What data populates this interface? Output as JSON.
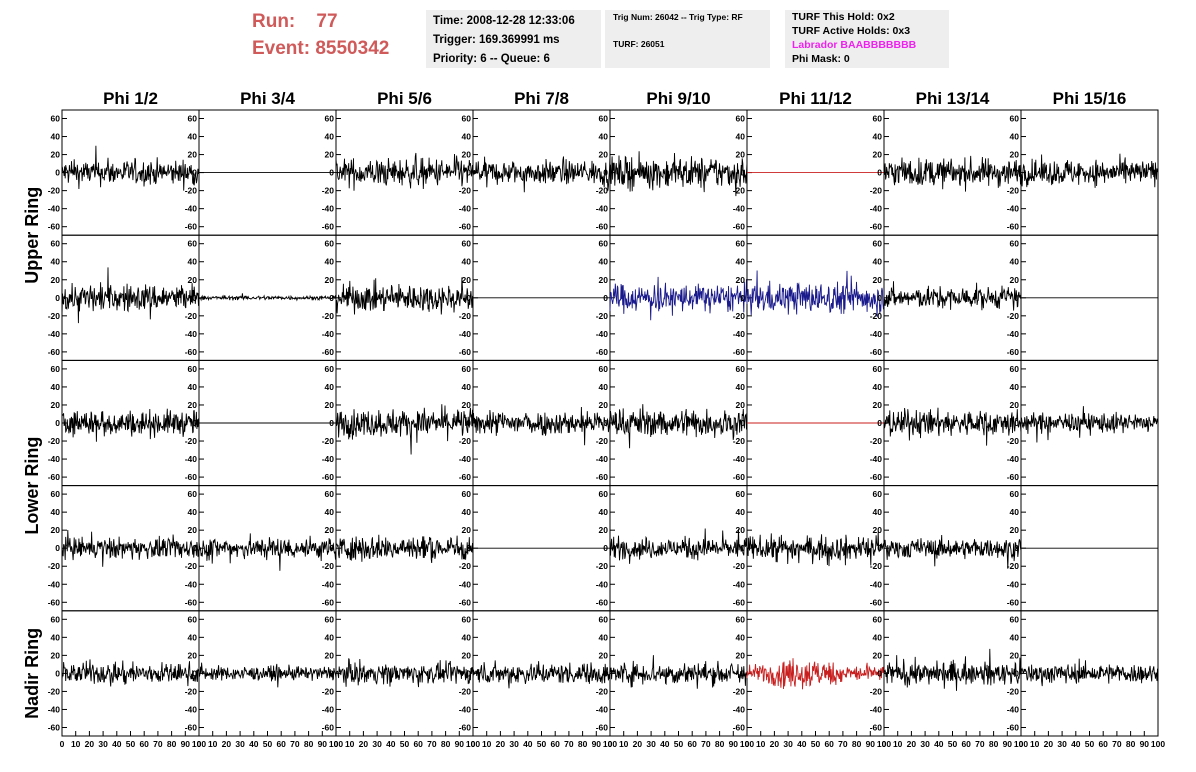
{
  "header": {
    "run_label": "Run:",
    "run_value": "77",
    "event_label": "Event:",
    "event_value": "8550342",
    "time": "Time: 2008-12-28 12:33:06",
    "trigger": "Trigger: 169.369991 ms",
    "priority": "Priority: 6 -- Queue: 6",
    "trig_num": "Trig Num: 26042 -- Trig Type: RF",
    "turf": "TURF: 26051",
    "turf_hold": "TURF This Hold: 0x2",
    "turf_active": "TURF Active Holds: 0x3",
    "labrador": "Labrador BAABBBBBBB",
    "phi_mask": "Phi Mask: 0"
  },
  "colors": {
    "run_text": "#d05a5a",
    "labrador": "#ee22ee",
    "trace_default": "#000000",
    "trace_blue": "#1a1a8c",
    "trace_red": "#c81e1e"
  },
  "chart_data": {
    "type": "line",
    "columns": [
      "Phi 1/2",
      "Phi 3/4",
      "Phi 5/6",
      "Phi 7/8",
      "Phi 9/10",
      "Phi 11/12",
      "Phi 13/14",
      "Phi 15/16"
    ],
    "rows": [
      "Upper Ring",
      "Lower Ring",
      "Nadir Ring"
    ],
    "xlim": [
      0,
      100
    ],
    "ylim": [
      -65,
      65
    ],
    "y_ticks": [
      "60",
      "40",
      "20",
      "0",
      "-20",
      "-40",
      "-60"
    ],
    "x_tick_labels": [
      "0",
      "10",
      "20",
      "30",
      "40",
      "50",
      "60",
      "70",
      "80",
      "90",
      "100"
    ],
    "panels": [
      [
        {
          "amp": 18,
          "color": "#000000"
        },
        {
          "amp": 0,
          "color": "#000000"
        },
        {
          "amp": 20,
          "color": "#000000"
        },
        {
          "amp": 17,
          "color": "#000000"
        },
        {
          "amp": 22,
          "color": "#000000"
        },
        {
          "amp": 0,
          "color": "#c81e1e"
        },
        {
          "amp": 20,
          "color": "#000000"
        },
        {
          "amp": 18,
          "color": "#000000"
        }
      ],
      [
        {
          "amp": 20,
          "color": "#000000"
        },
        {
          "amp": 3,
          "color": "#000000"
        },
        {
          "amp": 20,
          "color": "#000000"
        },
        {
          "amp": 0,
          "color": "#000000"
        },
        {
          "amp": 20,
          "color": "#1a1a8c"
        },
        {
          "amp": 22,
          "color": "#1a1a8c"
        },
        {
          "amp": 15,
          "color": "#000000"
        },
        {
          "amp": 0,
          "color": "#000000"
        }
      ],
      [
        {
          "amp": 18,
          "color": "#000000"
        },
        {
          "amp": 0,
          "color": "#000000"
        },
        {
          "amp": 20,
          "color": "#000000"
        },
        {
          "amp": 17,
          "color": "#000000"
        },
        {
          "amp": 20,
          "color": "#000000"
        },
        {
          "amp": 0,
          "color": "#c81e1e"
        },
        {
          "amp": 19,
          "color": "#000000"
        },
        {
          "amp": 14,
          "color": "#000000"
        }
      ],
      [
        {
          "amp": 15,
          "color": "#000000"
        },
        {
          "amp": 16,
          "color": "#000000"
        },
        {
          "amp": 18,
          "color": "#000000"
        },
        {
          "amp": 0,
          "color": "#000000"
        },
        {
          "amp": 15,
          "color": "#000000"
        },
        {
          "amp": 17,
          "color": "#000000"
        },
        {
          "amp": 14,
          "color": "#000000"
        },
        {
          "amp": 0,
          "color": "#000000"
        }
      ],
      [
        {
          "amp": 15,
          "color": "#000000"
        },
        {
          "amp": 10,
          "color": "#000000"
        },
        {
          "amp": 14,
          "color": "#000000"
        },
        {
          "amp": 15,
          "color": "#000000"
        },
        {
          "amp": 16,
          "color": "#000000"
        },
        {
          "amp": 20,
          "color": "#c81e1e"
        },
        {
          "amp": 16,
          "color": "#000000"
        },
        {
          "amp": 14,
          "color": "#000000"
        }
      ]
    ]
  }
}
